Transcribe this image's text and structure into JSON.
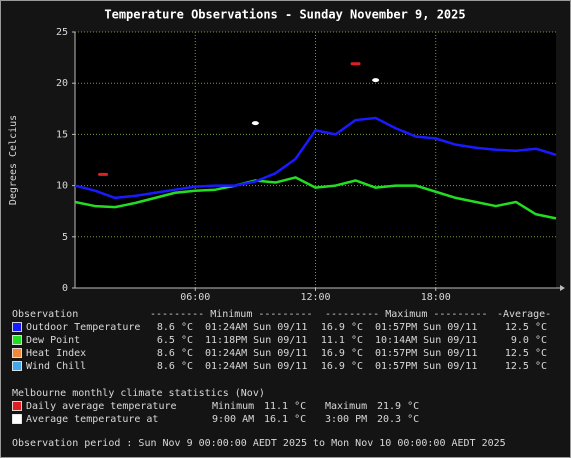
{
  "chart_data": {
    "type": "line",
    "title": "Temperature Observations - Sunday November 9, 2025",
    "y_label": "Degrees Celcius",
    "x": [
      0,
      1,
      2,
      3,
      4,
      5,
      6,
      7,
      8,
      9,
      10,
      11,
      12,
      13,
      14,
      15,
      16,
      17,
      18,
      19,
      20,
      21,
      22,
      23,
      24
    ],
    "xlim": [
      0,
      24
    ],
    "xticks": [
      {
        "value": 6,
        "label": "06:00"
      },
      {
        "value": 12,
        "label": "12:00"
      },
      {
        "value": 18,
        "label": "18:00"
      }
    ],
    "ylim": [
      0,
      25
    ],
    "yticks": [
      0,
      5,
      10,
      15,
      20,
      25
    ],
    "grid": true,
    "stats_header": [
      "Observation",
      "--------- Minimum ---------",
      "--------- Maximum ---------",
      "-Average-"
    ],
    "series": [
      {
        "name": "Outdoor Temperature",
        "color": "#1a1aff",
        "values": [
          10.0,
          9.5,
          8.8,
          9.0,
          9.3,
          9.6,
          9.9,
          10.0,
          10.0,
          10.4,
          11.2,
          12.6,
          15.4,
          15.0,
          16.4,
          16.6,
          15.6,
          14.8,
          14.6,
          14.0,
          13.7,
          13.5,
          13.4,
          13.6,
          13.0
        ],
        "stats": [
          "8.6 °C",
          "01:24AM Sun 09/11",
          "16.9 °C",
          "01:57PM Sun 09/11",
          "12.5 °C"
        ]
      },
      {
        "name": "Dew Point",
        "color": "#22dd22",
        "values": [
          8.4,
          8.0,
          7.9,
          8.3,
          8.8,
          9.3,
          9.5,
          9.6,
          10.0,
          10.5,
          10.3,
          10.8,
          9.8,
          10.0,
          10.5,
          9.8,
          10.0,
          10.0,
          9.4,
          8.8,
          8.4,
          8.0,
          8.4,
          7.2,
          6.8
        ],
        "stats": [
          "6.5 °C",
          "11:18PM Sun 09/11",
          "11.1 °C",
          "10:14AM Sun 09/11",
          "9.0 °C"
        ]
      },
      {
        "name": "Heat Index",
        "color": "#f0883c",
        "stats": [
          "8.6 °C",
          "01:24AM Sun 09/11",
          "16.9 °C",
          "01:57PM Sun 09/11",
          "12.5 °C"
        ]
      },
      {
        "name": "Wind Chill",
        "color": "#44a8e8",
        "stats": [
          "8.6 °C",
          "01:24AM Sun 09/11",
          "16.9 °C",
          "01:57PM Sun 09/11",
          "12.5 °C"
        ]
      }
    ],
    "climate": {
      "title": "Melbourne monthly climate statistics (Nov)",
      "series": [
        {
          "name": "Daily average temperature",
          "color": "#e02020",
          "marker": "dash",
          "x": [
            1.4,
            14
          ],
          "values": [
            11.1,
            21.9
          ],
          "labels": [
            "Minimum",
            "Maximum"
          ],
          "value_labels": [
            "11.1 °C",
            "21.9 °C"
          ]
        },
        {
          "name": "Average temperature at",
          "color": "#ffffff",
          "marker": "dot",
          "x": [
            9,
            15
          ],
          "values": [
            16.1,
            20.3
          ],
          "labels": [
            "9:00 AM",
            "3:00 PM"
          ],
          "value_labels": [
            "16.1 °C",
            "20.3 °C"
          ]
        }
      ]
    },
    "footer": "Observation period : Sun Nov 9 00:00:00 AEDT 2025 to Mon Nov 10 00:00:00 AEDT 2025"
  }
}
